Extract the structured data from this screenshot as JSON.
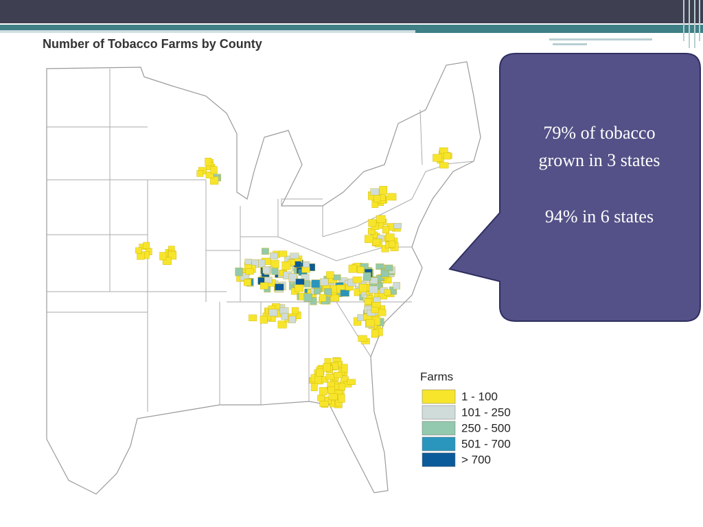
{
  "slide": {
    "map_title": "Number of Tobacco Farms by County",
    "legend": {
      "title": "Farms",
      "items": [
        {
          "label": "1 - 100",
          "color": "#f7e52c"
        },
        {
          "label": "101 - 250",
          "color": "#cfdcda"
        },
        {
          "label": "250 - 500",
          "color": "#93c9ae"
        },
        {
          "label": "501 - 700",
          "color": "#2a95bd"
        },
        {
          "label": "> 700",
          "color": "#0b5a9a"
        }
      ]
    },
    "callout": {
      "lines": [
        "79% of tobacco grown in 3 states",
        "94% in 6 states"
      ]
    }
  }
}
